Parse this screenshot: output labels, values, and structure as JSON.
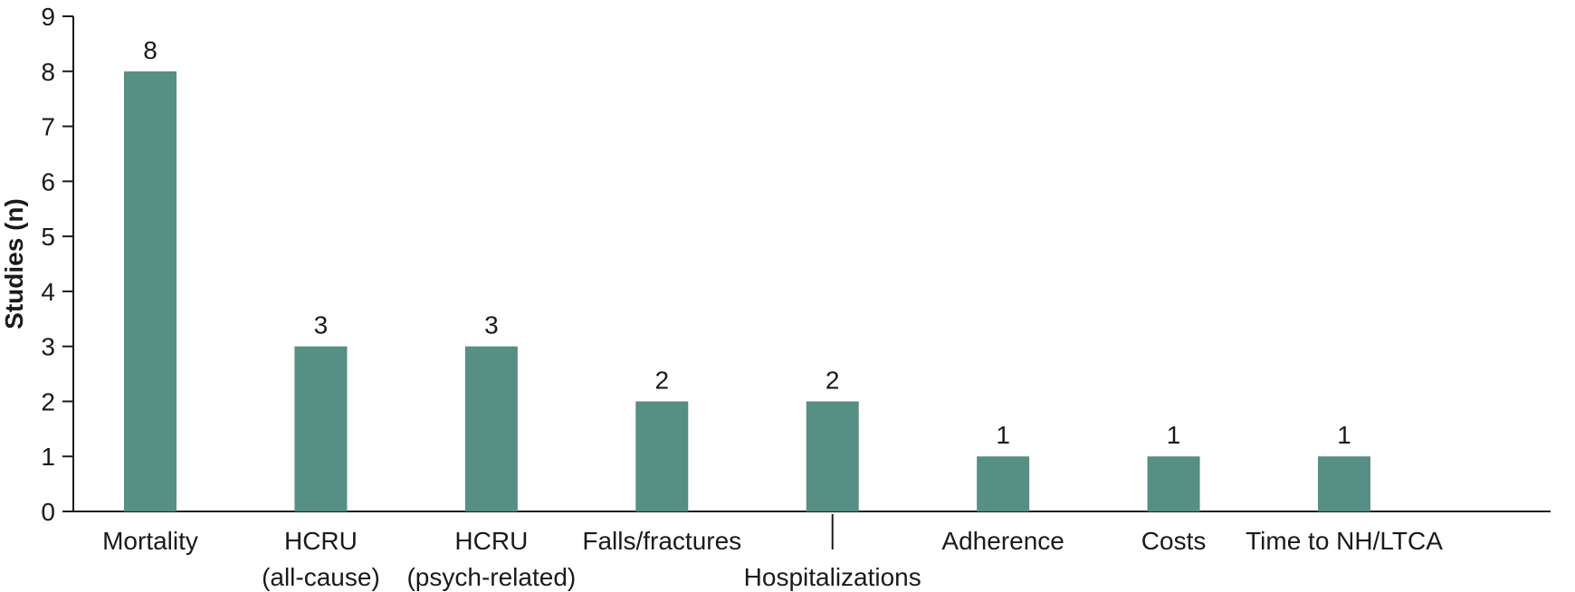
{
  "chart_data": {
    "type": "bar",
    "ylabel": "Studies (n)",
    "xlabel": "",
    "ylim": [
      0,
      9
    ],
    "yticks": [
      0,
      1,
      2,
      3,
      4,
      5,
      6,
      7,
      8,
      9
    ],
    "categories": [
      [
        "Mortality"
      ],
      [
        "HCRU",
        "(all-cause)"
      ],
      [
        "HCRU",
        "(psych-related)"
      ],
      [
        "Falls/fractures"
      ],
      [
        "Hospitalizations"
      ],
      [
        "Adherence"
      ],
      [
        "Costs"
      ],
      [
        "Time to NH/LTCA"
      ]
    ],
    "values": [
      8,
      3,
      3,
      2,
      2,
      1,
      1,
      1
    ],
    "data_labels": [
      "8",
      "3",
      "3",
      "2",
      "2",
      "1",
      "1",
      "1"
    ],
    "bar_color": "#568f84",
    "grid": false,
    "legend": "none"
  }
}
